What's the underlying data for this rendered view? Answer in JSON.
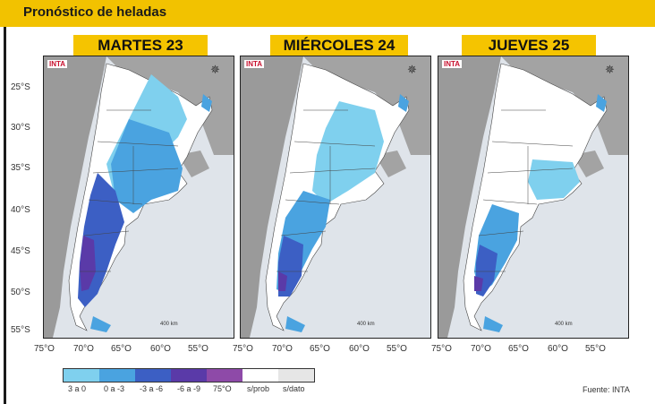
{
  "title": "Pronóstico de heladas",
  "days": [
    "MARTES 23",
    "MIÉRCOLES 24",
    "JUEVES 25"
  ],
  "lat_labels": [
    "25°S",
    "30°S",
    "35°S",
    "40°S",
    "45°S",
    "50°S",
    "55°S"
  ],
  "lon_labels": [
    "75°O",
    "70°O",
    "65°O",
    "60°O",
    "55°O"
  ],
  "legend": {
    "items": [
      {
        "label": "3 a 0",
        "color": "#7fd0ee"
      },
      {
        "label": "0 a -3",
        "color": "#4aa3e0"
      },
      {
        "label": "-3 a -6",
        "color": "#3c5fc4"
      },
      {
        "label": "-6 a -9",
        "color": "#5a3aa8"
      },
      {
        "label": "75°O",
        "color": "#8e4aa8"
      },
      {
        "label": "s/prob",
        "color": "#ffffff"
      },
      {
        "label": "s/dato",
        "color": "#e6e6e6"
      }
    ]
  },
  "map_logo": "INTA",
  "scale_text": "400 km",
  "source": "Fuente: INTA",
  "colors": {
    "header": "#f2c200",
    "ocean": "#dfe4ea",
    "land": "#9a9a9a"
  }
}
